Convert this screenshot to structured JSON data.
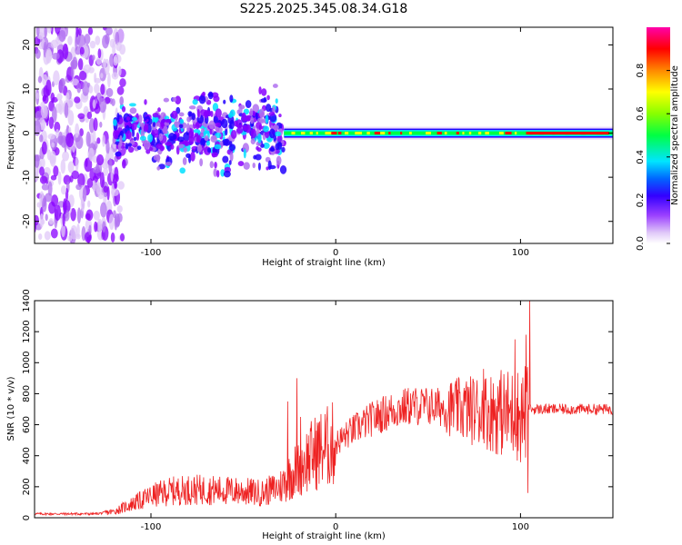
{
  "title": "S225.2025.345.08.34.G18",
  "colors": {
    "snr_line": "#ee2222",
    "axis": "#000000",
    "background": "#ffffff"
  },
  "chart_data": [
    {
      "type": "heatmap",
      "name": "spectrogram",
      "xlabel": "Height of straight line (km)",
      "ylabel": "Frequency (Hz)",
      "xlim": [
        -163,
        150
      ],
      "ylim": [
        -25,
        24
      ],
      "xticks": [
        -100,
        0,
        100
      ],
      "yticks": [
        -20,
        -10,
        0,
        10,
        20
      ],
      "colorbar": {
        "label": "Normalized spectral amplitude",
        "range": [
          0,
          1
        ],
        "ticks": [
          "0.0",
          "0.2",
          "0.4",
          "0.6",
          "0.8"
        ],
        "tick_values": [
          0.0,
          0.2,
          0.4,
          0.6,
          0.8
        ],
        "colormap": [
          "#ffffff",
          "#e0c8f8",
          "#b070f0",
          "#8800ff",
          "#2200ff",
          "#00e0ff",
          "#00ff00",
          "#ffff00",
          "#ff8800",
          "#ff0000",
          "#ff00aa"
        ]
      },
      "regions": [
        {
          "desc": "scattered noise",
          "x_range": [
            -163,
            -120
          ],
          "freq_spread": 24,
          "amplitude": 0.1
        },
        {
          "desc": "noisy band",
          "x_range": [
            -120,
            -28
          ],
          "freq_spread": 6,
          "amplitude": 0.2
        },
        {
          "desc": "stable line",
          "x_range": [
            -28,
            150
          ],
          "freq_center": 0,
          "freq_spread": 1,
          "amplitude": 0.9
        }
      ]
    },
    {
      "type": "line",
      "name": "snr",
      "xlabel": "Height of straight line (km)",
      "ylabel": "SNR (10 * v/v)",
      "xlim": [
        -163,
        150
      ],
      "ylim": [
        0,
        1400
      ],
      "xticks": [
        -100,
        0,
        100
      ],
      "yticks": [
        0,
        200,
        400,
        600,
        800,
        1000,
        1200,
        1400
      ],
      "series": [
        {
          "name": "SNR",
          "trend": [
            [
              -163,
              25
            ],
            [
              -130,
              25
            ],
            [
              -120,
              40
            ],
            [
              -110,
              90
            ],
            [
              -100,
              140
            ],
            [
              -90,
              170
            ],
            [
              -80,
              180
            ],
            [
              -70,
              180
            ],
            [
              -60,
              175
            ],
            [
              -50,
              170
            ],
            [
              -40,
              160
            ],
            [
              -30,
              200
            ],
            [
              -20,
              330
            ],
            [
              -10,
              430
            ],
            [
              0,
              480
            ],
            [
              10,
              570
            ],
            [
              20,
              640
            ],
            [
              30,
              690
            ],
            [
              40,
              720
            ],
            [
              50,
              720
            ],
            [
              60,
              710
            ],
            [
              70,
              700
            ],
            [
              80,
              690
            ],
            [
              90,
              680
            ],
            [
              100,
              660
            ],
            [
              105,
              700
            ],
            [
              120,
              700
            ],
            [
              150,
              700
            ]
          ],
          "peaks": [
            [
              -21,
              900
            ],
            [
              -26,
              750
            ],
            [
              -19,
              650
            ],
            [
              97,
              1150
            ],
            [
              103,
              1180
            ],
            [
              105,
              1400
            ],
            [
              104,
              160
            ],
            [
              80,
              960
            ]
          ]
        }
      ]
    }
  ]
}
